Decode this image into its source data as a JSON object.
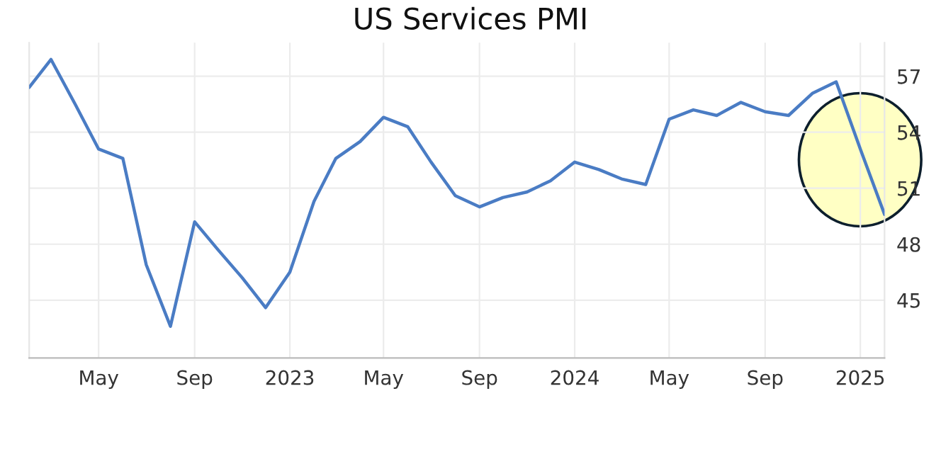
{
  "chart_data": {
    "type": "line",
    "title": "US Services PMI",
    "x": [
      "2022-02",
      "2022-03",
      "2022-04",
      "2022-05",
      "2022-06",
      "2022-07",
      "2022-08",
      "2022-09",
      "2022-10",
      "2022-11",
      "2022-12",
      "2023-01",
      "2023-02",
      "2023-03",
      "2023-04",
      "2023-05",
      "2023-06",
      "2023-07",
      "2023-08",
      "2023-09",
      "2023-10",
      "2023-11",
      "2023-12",
      "2024-01",
      "2024-02",
      "2024-03",
      "2024-04",
      "2024-05",
      "2024-06",
      "2024-07",
      "2024-08",
      "2024-09",
      "2024-10",
      "2024-11",
      "2024-12",
      "2025-01",
      "2025-02"
    ],
    "series": [
      {
        "color": "#4a7cc4",
        "values": [
          56.4,
          57.9,
          55.5,
          53.1,
          52.6,
          46.9,
          43.6,
          49.2,
          47.7,
          46.2,
          44.6,
          46.5,
          50.3,
          52.6,
          53.5,
          54.8,
          54.3,
          52.4,
          50.6,
          50.0,
          50.5,
          50.8,
          51.4,
          52.4,
          52.0,
          51.5,
          51.2,
          54.7,
          55.2,
          54.9,
          55.6,
          55.1,
          54.9,
          56.1,
          56.7,
          53.1,
          49.6
        ]
      }
    ],
    "xlim": [
      "2022-02-01",
      "2025-02-01"
    ],
    "xticks": [
      {
        "value": "2022-05",
        "label": "May"
      },
      {
        "value": "2022-09",
        "label": "Sep"
      },
      {
        "value": "2023-01",
        "label": "2023"
      },
      {
        "value": "2023-05",
        "label": "May"
      },
      {
        "value": "2023-09",
        "label": "Sep"
      },
      {
        "value": "2024-01",
        "label": "2024"
      },
      {
        "value": "2024-05",
        "label": "May"
      },
      {
        "value": "2024-09",
        "label": "Sep"
      },
      {
        "value": "2025-01",
        "label": "2025"
      }
    ],
    "ylim": [
      41.9,
      58.8
    ],
    "yticks": [
      45,
      48,
      51,
      54,
      57
    ],
    "grid": true,
    "marker": "none",
    "line_style": "solid"
  }
}
